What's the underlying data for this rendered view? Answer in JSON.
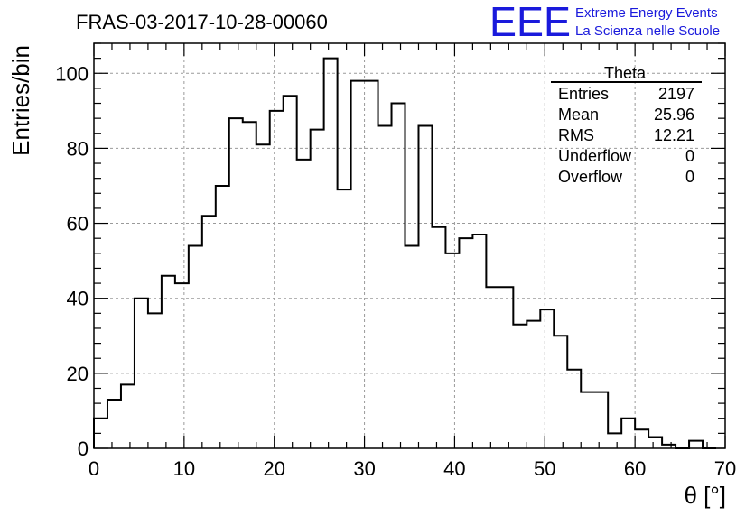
{
  "title": "FRAS-03-2017-10-28-00060",
  "logo": {
    "mark": "EEE",
    "line1": "Extreme Energy Events",
    "line2": "La Scienza nelle Scuole",
    "color": "#1a1adc"
  },
  "stats": {
    "name": "Theta",
    "rows": [
      {
        "label": "Entries",
        "value": "2197"
      },
      {
        "label": "Mean",
        "value": "25.96"
      },
      {
        "label": "RMS",
        "value": "12.21"
      },
      {
        "label": "Underflow",
        "value": "0"
      },
      {
        "label": "Overflow",
        "value": "0"
      }
    ]
  },
  "chart_data": {
    "type": "bar",
    "style": "step-histogram",
    "xlabel": "θ [°]",
    "ylabel": "Entries/bin",
    "xlim": [
      0,
      70
    ],
    "ylim": [
      0,
      108
    ],
    "bin_width": 1.5,
    "x_ticks": [
      0,
      10,
      20,
      30,
      40,
      50,
      60,
      70
    ],
    "y_ticks": [
      0,
      20,
      40,
      60,
      80,
      100
    ],
    "grid": true,
    "values": [
      8,
      13,
      17,
      40,
      36,
      46,
      44,
      54,
      62,
      70,
      88,
      87,
      81,
      90,
      94,
      77,
      85,
      104,
      69,
      98,
      98,
      86,
      92,
      54,
      86,
      59,
      52,
      56,
      57,
      43,
      43,
      33,
      34,
      37,
      30,
      21,
      15,
      15,
      4,
      8,
      5,
      3,
      1,
      0,
      2,
      0
    ]
  }
}
